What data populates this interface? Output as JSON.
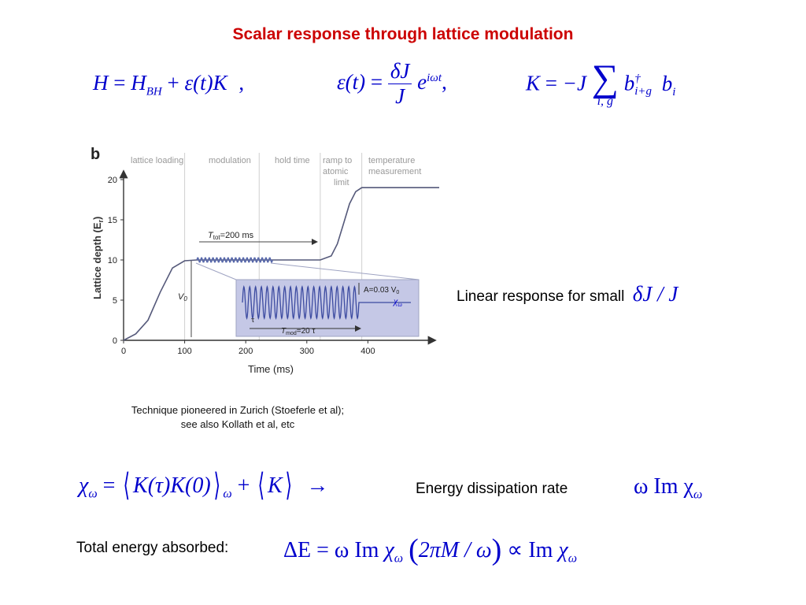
{
  "slide": {
    "title": "Scalar response through lattice modulation"
  },
  "equations": {
    "hamiltonian": {
      "lhs": "H",
      "eq": "=",
      "h_main": "H",
      "h_sub": "BH",
      "plus": "+",
      "eps": "ε",
      "t_paren": "(t)",
      "K": "K",
      "comma": ","
    },
    "epsilon": {
      "lhs": "ε",
      "t_paren": "(t)",
      "eq": "=",
      "numerator": "δJ",
      "denominator": "J",
      "exp_base": "e",
      "exp_power": "iωt",
      "comma": ","
    },
    "kinetic": {
      "lhs": "K",
      "eq": "=",
      "minus_j": "−J",
      "sum": "∑",
      "sum_under": "i, g",
      "b": "b",
      "dagger": "†",
      "sub_1": "i+g",
      "b2": "b",
      "sub_2": "i"
    }
  },
  "figure": {
    "panel_label": "b",
    "phases": [
      "lattice loading",
      "modulation",
      "hold time",
      "ramp to",
      "atomic",
      "limit",
      "temperature",
      "measurement"
    ],
    "y_axis_label": "Lattice depth (E",
    "y_axis_label_sub": "r",
    "y_axis_label_end": ")",
    "x_axis_label": "Time (ms)",
    "ttot_label": "T",
    "ttot_sub": "tot",
    "ttot_value": "=200 ms",
    "v0_label": "V",
    "v0_sub": "0",
    "inset_amp": "A=0.03 V",
    "inset_amp_sub": "0",
    "inset_chi": "χ",
    "inset_chi_sub": "ω",
    "inset_tau": "τ",
    "inset_tmod": "T",
    "inset_tmod_sub": "mod",
    "inset_tmod_value": "=20 τ"
  },
  "chart_data": {
    "type": "line",
    "xlabel": "Time (ms)",
    "ylabel": "Lattice depth (Er)",
    "xlim": [
      0,
      520
    ],
    "ylim": [
      0,
      22
    ],
    "x_ticks": [
      0,
      100,
      200,
      300,
      400
    ],
    "y_ticks": [
      0,
      5,
      10,
      15,
      20
    ],
    "grid": false,
    "phase_boundaries": [
      100,
      222,
      322,
      390
    ],
    "series": [
      {
        "x": [
          0,
          20,
          40,
          60,
          80,
          100,
          120,
          322,
          340,
          350,
          360,
          370,
          380,
          390,
          400,
          520
        ],
        "y": [
          0,
          0.8,
          2.5,
          6.0,
          9.0,
          9.9,
          10,
          10,
          10.5,
          12,
          14.5,
          17,
          18.5,
          19,
          19,
          19
        ]
      }
    ],
    "modulation": {
      "x_start": 120,
      "x_end": 244,
      "center": 10,
      "amplitude": 0.3
    }
  },
  "caption": {
    "line1": "Technique pioneered in Zurich (Stoeferle et al);",
    "line2": "see also Kollath et al, etc"
  },
  "linear_response": {
    "text": "Linear response for small",
    "math": "δJ / J"
  },
  "correlator": {
    "chi": "χ",
    "chi_sub": "ω",
    "eq": "=",
    "inner": "K(τ)K(0)",
    "sub_omega": "ω",
    "plus": "+",
    "K": "K",
    "arrow": "→",
    "label": "Energy dissipation rate",
    "rate_expr": "ω Im χ",
    "rate_sub": "ω"
  },
  "total_energy": {
    "label": "Total energy absorbed:",
    "lhs": "ΔE",
    "eq": "=",
    "omega_im": "ω Im",
    "chi": "χ",
    "chi_sub": "ω",
    "arg": "2πM / ω",
    "propto": "∝",
    "im": "Im",
    "chi2": "χ",
    "chi2_sub": "ω"
  }
}
